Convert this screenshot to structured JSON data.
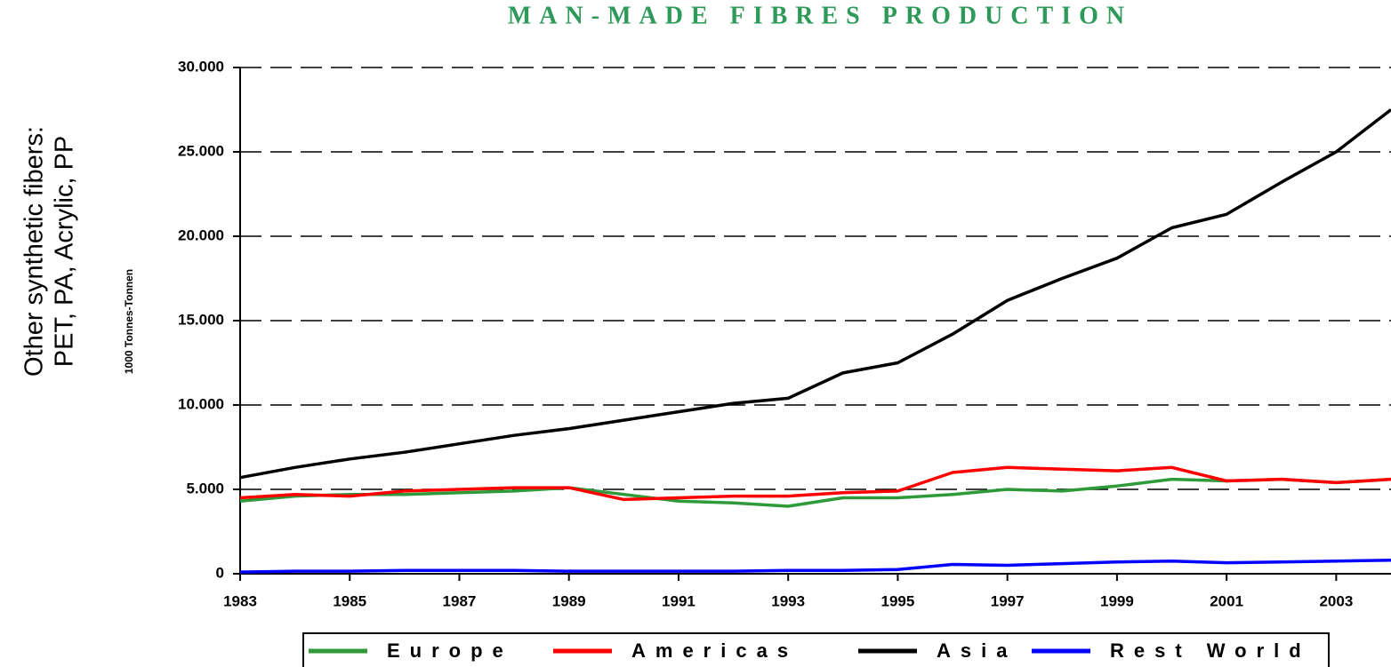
{
  "chart_data": {
    "type": "line",
    "title": "MAN-MADE FIBRES PRODUCTION",
    "y_axis_label": "1000 Tonnes-Tonnen",
    "annotation": [
      "Other synthetic fibers:",
      "PET, PA, Acrylic, PP"
    ],
    "x": [
      1983,
      1984,
      1985,
      1986,
      1987,
      1988,
      1989,
      1990,
      1991,
      1992,
      1993,
      1994,
      1995,
      1996,
      1997,
      1998,
      1999,
      2000,
      2001,
      2002,
      2003,
      2004
    ],
    "series": [
      {
        "name": "Europe",
        "color": "#2e9a3a",
        "values": [
          4300,
          4600,
          4700,
          4700,
          4800,
          4900,
          5100,
          4700,
          4300,
          4200,
          4000,
          4500,
          4500,
          4700,
          5000,
          4900,
          5200,
          5600,
          5500,
          5600,
          5400,
          5600
        ]
      },
      {
        "name": "Americas",
        "color": "#ff0000",
        "values": [
          4500,
          4700,
          4600,
          4900,
          5000,
          5100,
          5100,
          4400,
          4500,
          4600,
          4600,
          4800,
          4900,
          6000,
          6300,
          6200,
          6100,
          6300,
          5500,
          5600,
          5400,
          5600
        ]
      },
      {
        "name": "Asia",
        "color": "#000000",
        "values": [
          5700,
          6300,
          6800,
          7200,
          7700,
          8200,
          8600,
          9100,
          9600,
          10100,
          10400,
          11900,
          12500,
          14200,
          16200,
          17500,
          18700,
          20500,
          21300,
          23200,
          25000,
          27500
        ]
      },
      {
        "name": "Rest World",
        "color": "#0000ff",
        "values": [
          100,
          150,
          150,
          200,
          200,
          200,
          150,
          150,
          150,
          150,
          200,
          200,
          250,
          550,
          500,
          600,
          700,
          750,
          650,
          700,
          750,
          800
        ]
      }
    ],
    "xlim": [
      1983,
      2004
    ],
    "xticks": [
      1983,
      1985,
      1987,
      1989,
      1991,
      1993,
      1995,
      1997,
      1999,
      2001,
      2003
    ],
    "ylim": [
      0,
      30000
    ],
    "yticks": [
      0,
      {
        "value": 5000,
        "label": "5.000"
      },
      {
        "value": 10000,
        "label": "10.000"
      },
      {
        "value": 15000,
        "label": "15.000"
      },
      {
        "value": 20000,
        "label": "20.000"
      },
      {
        "value": 25000,
        "label": "25.000"
      },
      {
        "value": 30000,
        "label": "30.000"
      }
    ],
    "grid": true,
    "legend": "bottom"
  }
}
